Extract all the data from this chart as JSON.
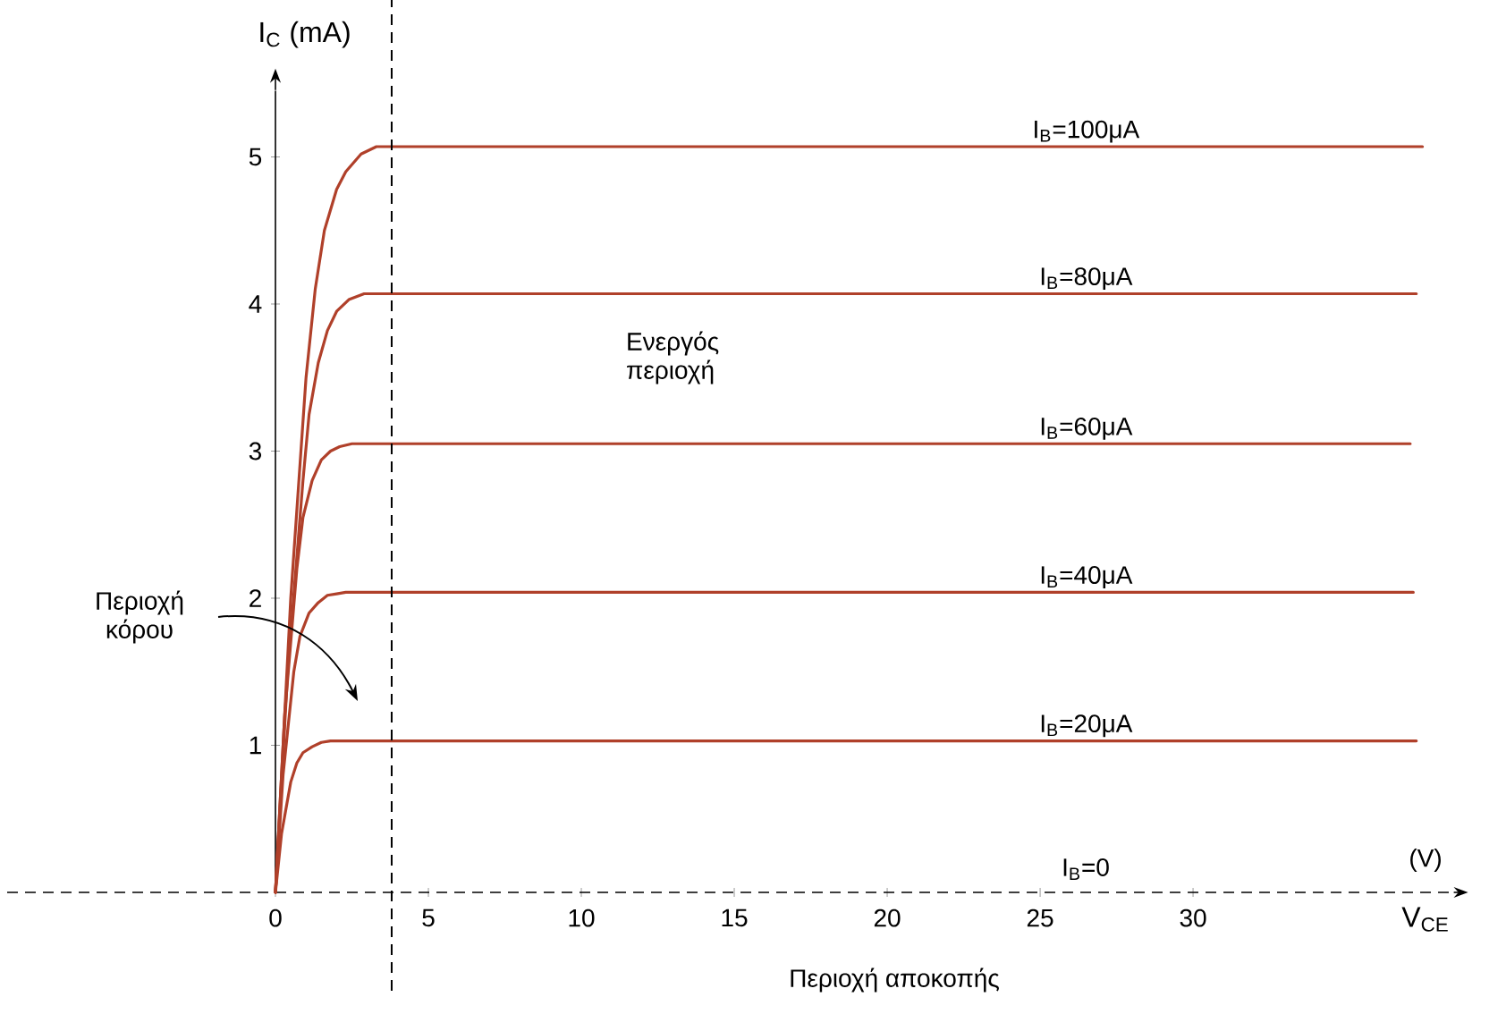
{
  "chart_data": {
    "type": "line",
    "xlabel": "V$_{CE}$",
    "ylabel": "I$_{C}$ (mA)",
    "xlim": [
      0,
      38.5
    ],
    "ylim": [
      0,
      5.45
    ],
    "xticks": [
      0,
      5,
      10,
      15,
      20,
      25,
      30
    ],
    "yticks": [
      1,
      2,
      3,
      4,
      5
    ],
    "grid": false,
    "series": [
      {
        "name": "I$_{B}$=100μA",
        "color": "#b0402a",
        "x": [
          0,
          0.5,
          1.0,
          1.3,
          1.6,
          2.0,
          2.3,
          2.8,
          3.3,
          37.5
        ],
        "values": [
          0,
          2,
          3.5,
          4.1,
          4.5,
          4.78,
          4.9,
          5.02,
          5.07,
          5.07
        ]
      },
      {
        "name": "I$_{B}$=80μA",
        "color": "#b0402a",
        "x": [
          0,
          0.4,
          0.9,
          1.1,
          1.4,
          1.7,
          2.0,
          2.4,
          2.9,
          37.3
        ],
        "values": [
          0,
          1.5,
          2.8,
          3.25,
          3.6,
          3.82,
          3.95,
          4.03,
          4.07,
          4.07
        ]
      },
      {
        "name": "I$_{B}$=60μA",
        "color": "#b0402a",
        "x": [
          0,
          0.3,
          0.7,
          0.9,
          1.2,
          1.5,
          1.8,
          2.1,
          2.5,
          37.1
        ],
        "values": [
          0,
          1.2,
          2.2,
          2.55,
          2.8,
          2.94,
          3.0,
          3.03,
          3.05,
          3.05
        ]
      },
      {
        "name": "I$_{B}$=40μA",
        "color": "#b0402a",
        "x": [
          0,
          0.25,
          0.6,
          0.8,
          1.1,
          1.4,
          1.7,
          2.0,
          2.3,
          37.2
        ],
        "values": [
          0,
          0.8,
          1.5,
          1.74,
          1.9,
          1.97,
          2.02,
          2.03,
          2.04,
          2.04
        ]
      },
      {
        "name": "I$_{B}$=20μA",
        "color": "#b0402a",
        "x": [
          0,
          0.2,
          0.5,
          0.7,
          0.9,
          1.2,
          1.5,
          1.8,
          2.1,
          37.3
        ],
        "values": [
          0,
          0.4,
          0.75,
          0.88,
          0.95,
          0.99,
          1.02,
          1.03,
          1.03,
          1.03
        ]
      }
    ],
    "ref_lines": [
      {
        "axis": "x",
        "value": 3.8,
        "color": "#000000",
        "line_style": "dashed"
      }
    ],
    "annotations": [
      "Περιοχή κόρου",
      "Ενεργός περιοχή",
      "Περιοχή αποκοπής",
      "(V)",
      "I$_{B}$=0"
    ]
  }
}
